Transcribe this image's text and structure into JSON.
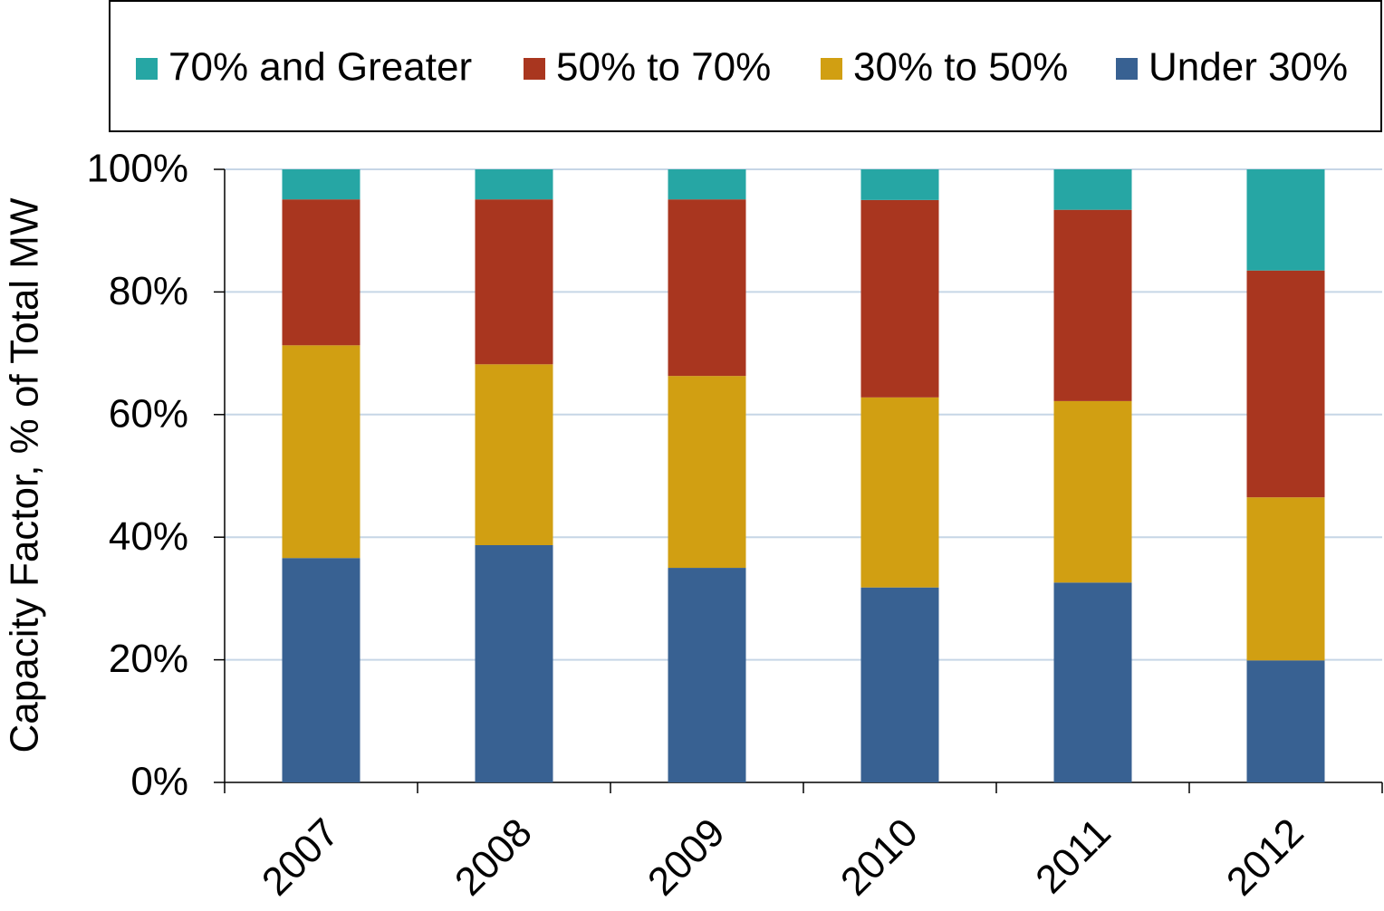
{
  "chart_data": {
    "type": "stacked_bar",
    "y_label": "Capacity Factor, % of Total MW",
    "categories": [
      "2007",
      "2008",
      "2009",
      "2010",
      "2011",
      "2012"
    ],
    "series": [
      {
        "name": "Under 30%",
        "color": "#386192",
        "values": [
          36.6,
          38.7,
          35.0,
          31.8,
          32.6,
          19.9
        ]
      },
      {
        "name": "30% to 50%",
        "color": "#d19f12",
        "values": [
          34.7,
          29.5,
          31.3,
          31.0,
          29.6,
          26.6
        ]
      },
      {
        "name": "50% to 70%",
        "color": "#a9361f",
        "values": [
          23.8,
          26.9,
          28.8,
          32.2,
          31.2,
          37.0
        ]
      },
      {
        "name": "70% and Greater",
        "color": "#26a6a4",
        "values": [
          4.9,
          4.9,
          4.9,
          5.0,
          6.6,
          16.5
        ]
      }
    ],
    "ylim": [
      0,
      100
    ],
    "yticks": [
      {
        "value": 0,
        "label": "0%"
      },
      {
        "value": 20,
        "label": "20%"
      },
      {
        "value": 40,
        "label": "40%"
      },
      {
        "value": 60,
        "label": "60%"
      },
      {
        "value": 80,
        "label": "80%"
      },
      {
        "value": 100,
        "label": "100%"
      }
    ],
    "grid": true
  }
}
